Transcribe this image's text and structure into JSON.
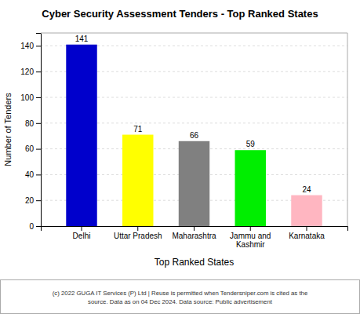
{
  "chart_data": {
    "type": "bar",
    "title": "Cyber Security Assessment Tenders - Top Ranked States",
    "categories": [
      "Delhi",
      "Uttar Pradesh",
      "Maharashtra",
      "Jammu and\nKashmir",
      "Karnataka"
    ],
    "values": [
      141,
      71,
      66,
      59,
      24
    ],
    "colors": [
      "#0000cc",
      "#ffff00",
      "#808080",
      "#00ee00",
      "#ffb6c1"
    ],
    "xlabel": "Top Ranked States",
    "ylabel": "Number of Tenders",
    "ylim": [
      0,
      150
    ],
    "yticks": [
      0,
      20,
      40,
      60,
      80,
      100,
      120,
      140
    ],
    "grid": true,
    "data_labels": true,
    "footer": "(c) 2022 GUGA IT Services (P) Ltd | Reuse is permitted when Tendersniper.com is cited as the\nsource. Data as on 04 Dec 2024. Data source: Public advertisement"
  }
}
